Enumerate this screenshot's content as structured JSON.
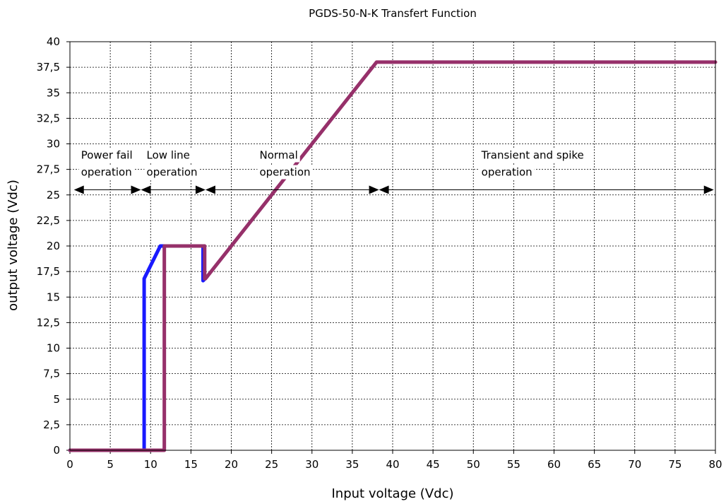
{
  "chart_data": {
    "type": "line",
    "title": "PGDS-50-N-K Transfert Function",
    "xlabel": "Input voltage (Vdc)",
    "ylabel": "output voltage (Vdc)",
    "xlim": [
      0,
      80
    ],
    "ylim": [
      0,
      40
    ],
    "x_ticks": [
      0,
      5,
      10,
      15,
      20,
      25,
      30,
      35,
      40,
      45,
      50,
      55,
      60,
      65,
      70,
      75,
      80
    ],
    "x_tick_labels": [
      "0",
      "5",
      "10",
      "15",
      "20",
      "25",
      "30",
      "35",
      "40",
      "45",
      "50",
      "55",
      "60",
      "65",
      "70",
      "75",
      "80"
    ],
    "y_ticks": [
      0,
      2.5,
      5,
      7.5,
      10,
      12.5,
      15,
      17.5,
      20,
      22.5,
      25,
      27.5,
      30,
      32.5,
      35,
      37.5,
      40
    ],
    "y_tick_labels": [
      "0",
      "2,5",
      "5",
      "7,5",
      "10",
      "12,5",
      "15",
      "17,5",
      "20",
      "22,5",
      "25",
      "27,5",
      "30",
      "32,5",
      "35",
      "37,5",
      "40"
    ],
    "grid": true,
    "series": [
      {
        "color": "#1a1aff",
        "x": [
          0,
          9.2,
          9.2,
          11.2,
          16.5,
          16.5,
          17.0
        ],
        "y": [
          0,
          0,
          16.8,
          20,
          20,
          16.6,
          17.0
        ]
      },
      {
        "color": "#96306a",
        "x": [
          0,
          11.7,
          11.7,
          16.7,
          16.7,
          16.8,
          38.0,
          80.0
        ],
        "y": [
          0,
          0,
          20,
          20,
          16.8,
          16.8,
          38.0,
          38.0
        ]
      }
    ],
    "annotations": {
      "arrow_y": 25.5,
      "regions": [
        {
          "id": "power-fail",
          "lines": [
            "Power fail",
            "operation"
          ],
          "x_start": 0.5,
          "x_end": 8.8
        },
        {
          "id": "low-line",
          "lines": [
            "Low line",
            "operation"
          ],
          "x_start": 8.8,
          "x_end": 16.8
        },
        {
          "id": "normal",
          "lines": [
            "Normal",
            "operation"
          ],
          "x_start": 16.8,
          "x_end": 38.3
        },
        {
          "id": "transient",
          "lines": [
            "Transient and spike",
            "operation"
          ],
          "x_start": 38.3,
          "x_end": 79.8
        }
      ]
    }
  }
}
